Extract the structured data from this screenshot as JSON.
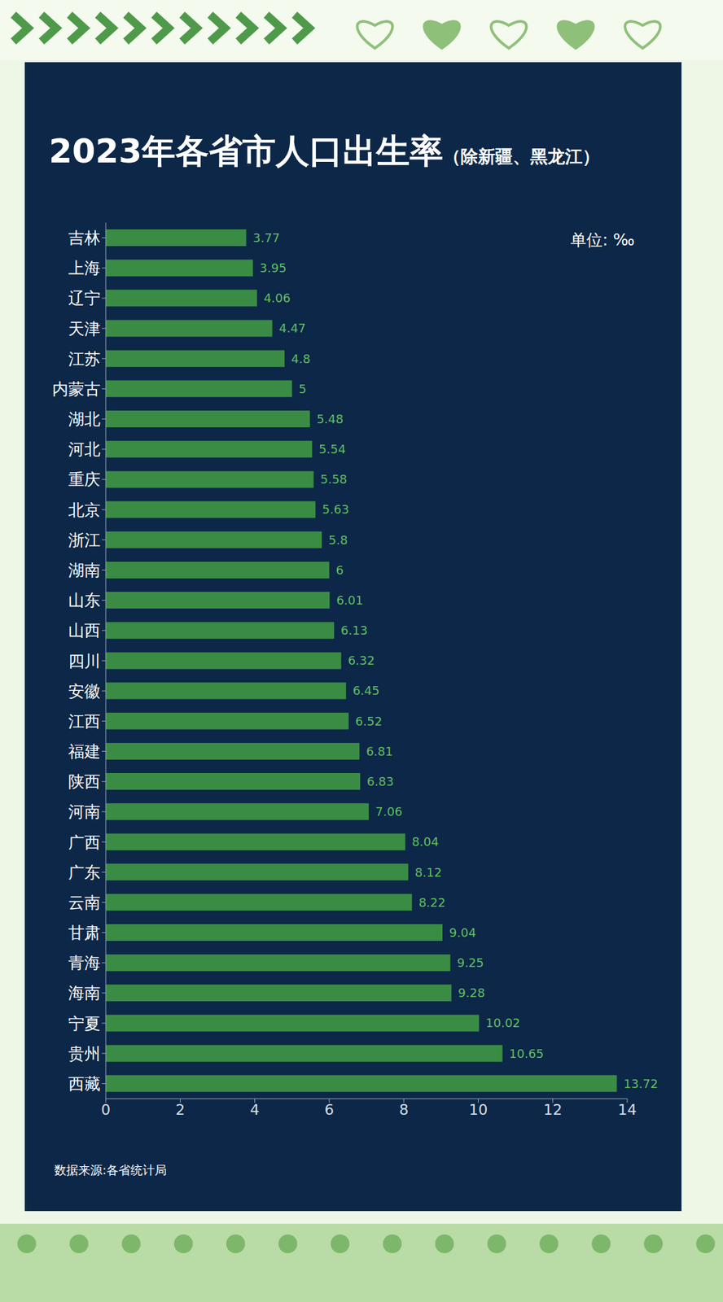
{
  "chart_data": {
    "type": "bar",
    "orientation": "horizontal",
    "title": "2023年各省市人口出生率",
    "subtitle": "（除新疆、黑龙江）",
    "unit_note": "单位: ‰",
    "source": "数据来源:各省统计局",
    "categories": [
      "吉林",
      "上海",
      "辽宁",
      "天津",
      "江苏",
      "内蒙古",
      "湖北",
      "河北",
      "重庆",
      "北京",
      "浙江",
      "湖南",
      "山东",
      "山西",
      "四川",
      "安徽",
      "江西",
      "福建",
      "陕西",
      "河南",
      "广西",
      "广东",
      "云南",
      "甘肃",
      "青海",
      "海南",
      "宁夏",
      "贵州",
      "西藏"
    ],
    "values": [
      3.77,
      3.95,
      4.06,
      4.47,
      4.8,
      5,
      5.48,
      5.54,
      5.58,
      5.63,
      5.8,
      6,
      6.01,
      6.13,
      6.32,
      6.45,
      6.52,
      6.81,
      6.83,
      7.06,
      8.04,
      8.12,
      8.22,
      9.04,
      9.25,
      9.28,
      10.02,
      10.65,
      13.72
    ],
    "color": "#3a8c45",
    "xlim": [
      0,
      14
    ],
    "xticks": [
      0,
      2,
      4,
      6,
      8,
      10,
      12,
      14
    ],
    "grid": false,
    "data_labels": true
  }
}
